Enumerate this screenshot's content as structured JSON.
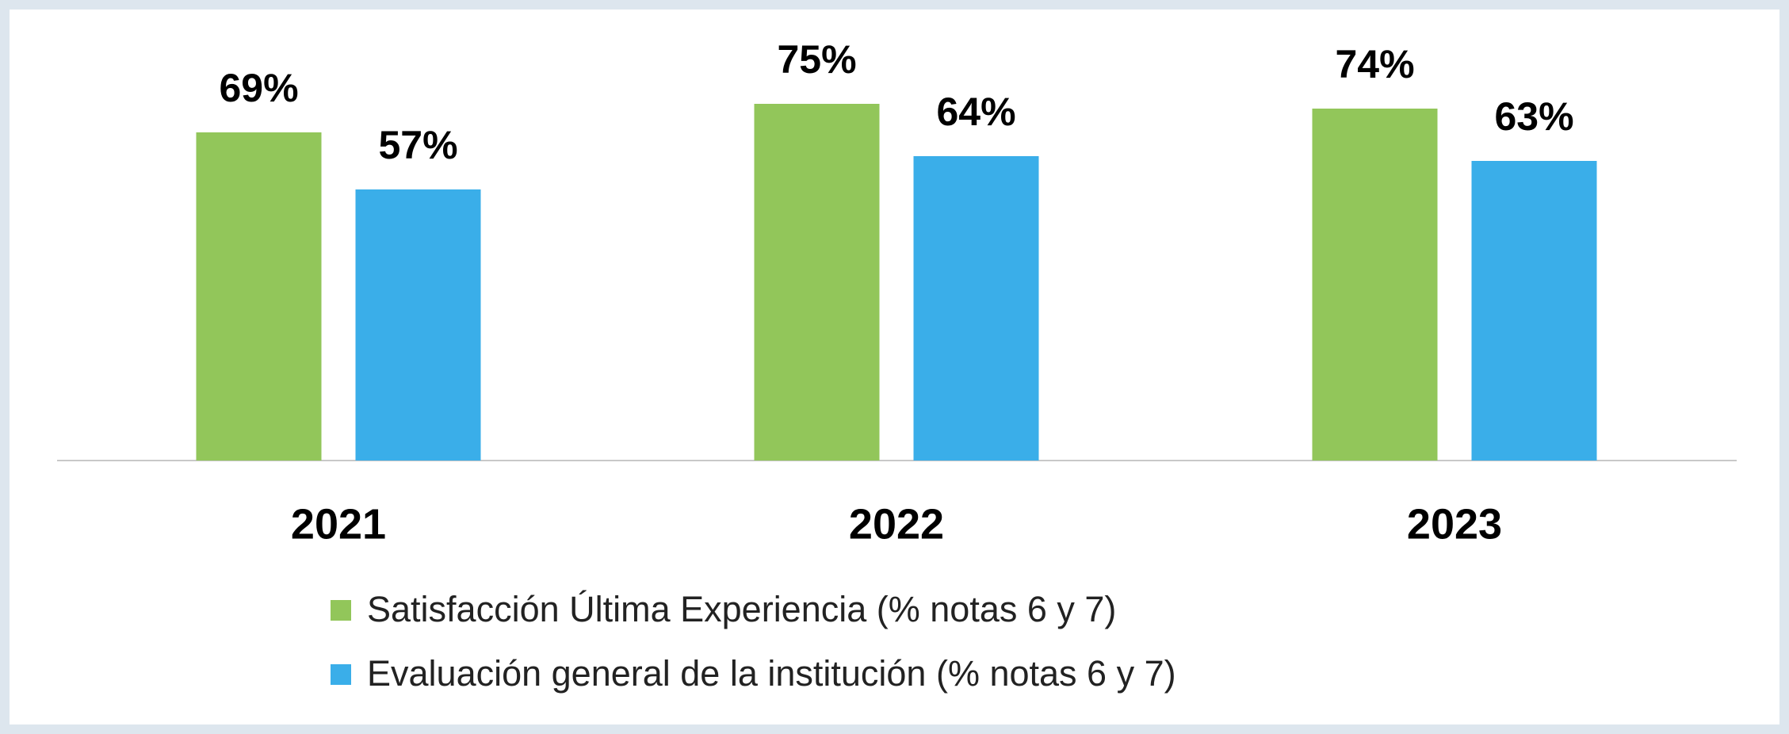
{
  "chart_data": {
    "type": "bar",
    "categories": [
      "2021",
      "2022",
      "2023"
    ],
    "series": [
      {
        "name": "Satisfacción Última Experiencia (% notas 6 y 7)",
        "color": "#92c65a",
        "values": [
          69,
          75,
          74
        ],
        "value_labels": [
          "69%",
          "75%",
          "74%"
        ]
      },
      {
        "name": "Evaluación general de la institución (% notas 6 y 7)",
        "color": "#3aaee9",
        "values": [
          57,
          64,
          63
        ],
        "value_labels": [
          "57%",
          "64%",
          "63%"
        ]
      }
    ]
  }
}
